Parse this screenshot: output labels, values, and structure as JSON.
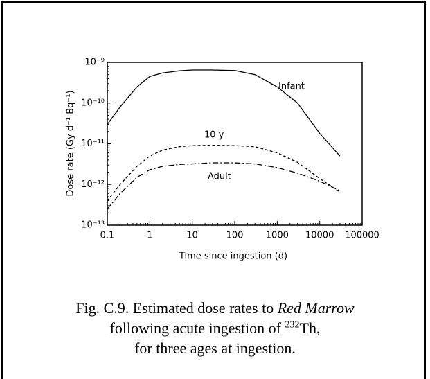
{
  "chart_data": {
    "type": "line",
    "x_label": "Time since ingestion (d)",
    "y_label": "Dose rate (Gy d⁻¹ Bq⁻¹)",
    "log_x": true,
    "log_y": true,
    "xlim": [
      0.1,
      100000
    ],
    "ylim": [
      1e-13,
      1e-09
    ],
    "xticks": [
      0.1,
      1,
      10,
      100,
      1000,
      10000,
      100000
    ],
    "yticks": [
      {
        "value": 1e-13,
        "label": "10⁻¹³"
      },
      {
        "value": 1e-12,
        "label": "10⁻¹²"
      },
      {
        "value": 1e-11,
        "label": "10⁻¹¹"
      },
      {
        "value": 1e-10,
        "label": "10⁻¹⁰"
      },
      {
        "value": 1e-09,
        "label": "10⁻⁹"
      }
    ],
    "x": [
      0.1,
      0.2,
      0.5,
      1,
      2,
      5,
      10,
      30,
      100,
      300,
      1000,
      3000,
      10000,
      30000
    ],
    "series": [
      {
        "name": "Infant",
        "color": "#000000",
        "dash": "solid",
        "values": [
          3e-11,
          8e-11,
          2.5e-10,
          4.5e-10,
          5.5e-10,
          6.2e-10,
          6.5e-10,
          6.5e-10,
          6.3e-10,
          5e-10,
          2.5e-10,
          1e-10,
          1.8e-11,
          5e-12
        ]
      },
      {
        "name": "10 y",
        "color": "#000000",
        "dash": "dashed",
        "values": [
          4e-13,
          1e-12,
          2.8e-12,
          5e-12,
          7e-12,
          8.5e-12,
          9e-12,
          9.2e-12,
          9e-12,
          8.5e-12,
          6e-12,
          3.5e-12,
          1.4e-12,
          6.5e-13
        ]
      },
      {
        "name": "Adult",
        "color": "#000000",
        "dash": "dashdot",
        "values": [
          2.5e-13,
          6e-13,
          1.5e-12,
          2.3e-12,
          2.8e-12,
          3.1e-12,
          3.2e-12,
          3.4e-12,
          3.4e-12,
          3.2e-12,
          2.6e-12,
          1.9e-12,
          1.2e-12,
          7e-13
        ]
      }
    ]
  },
  "caption": {
    "lead": "Fig. C.9.  Estimated dose rates to ",
    "organ": "Red Marrow",
    "line2": "following acute ingestion of ",
    "isotope_mass": "232",
    "isotope": "Th,",
    "line3": "for three ages at ingestion."
  }
}
